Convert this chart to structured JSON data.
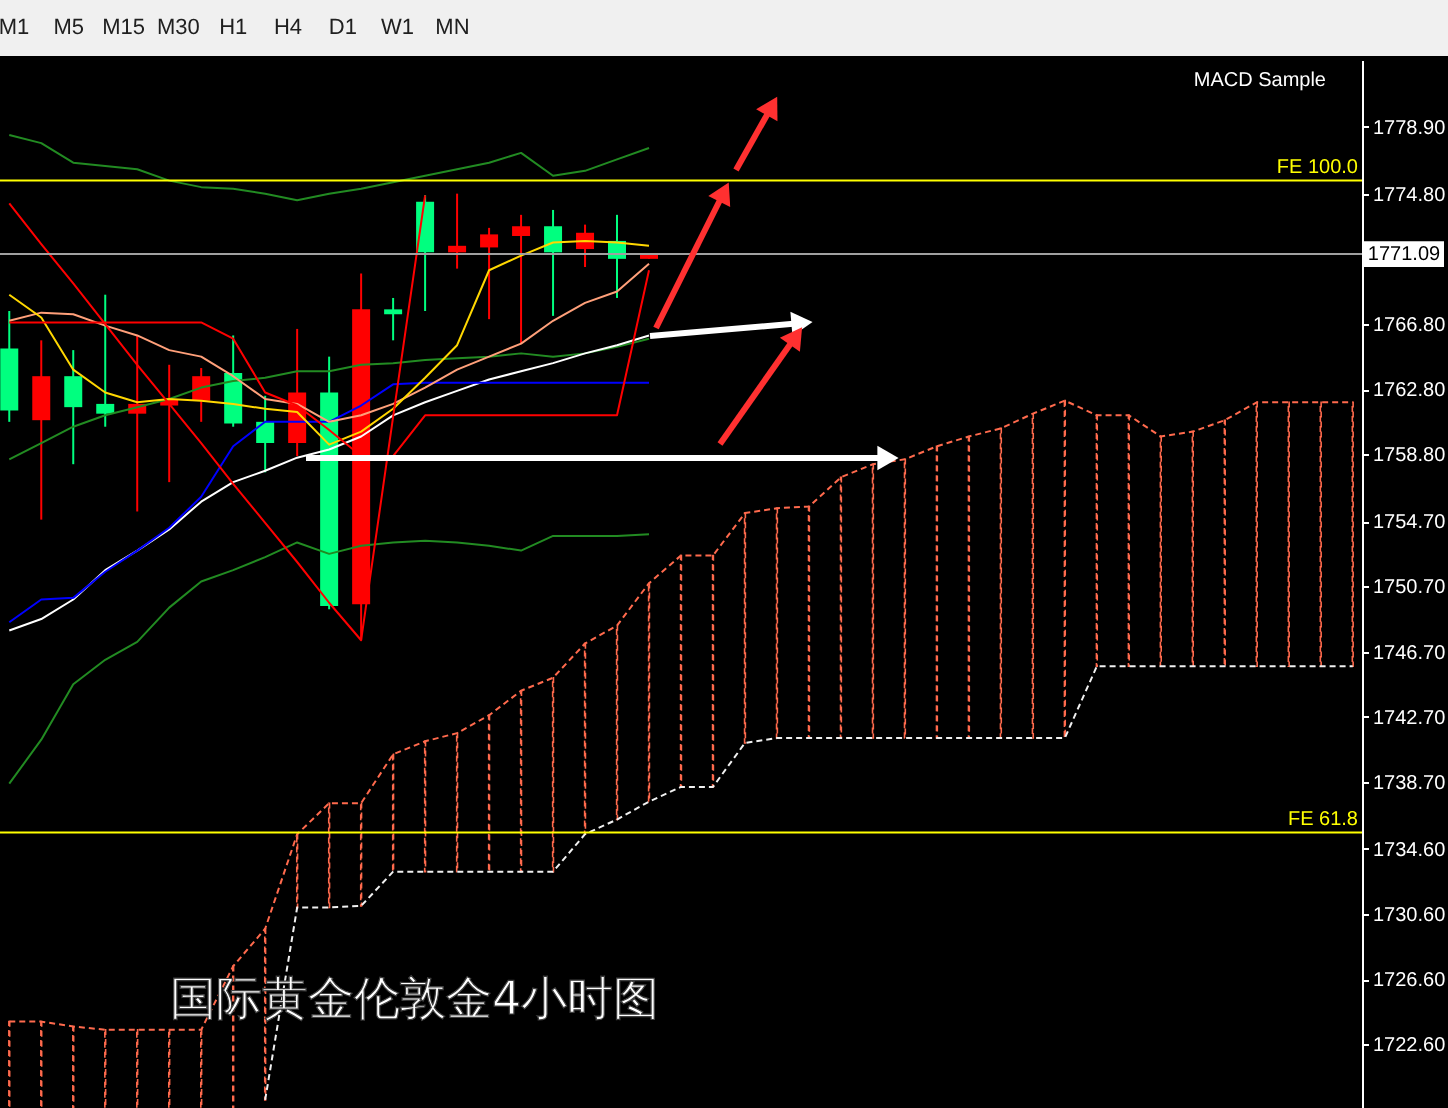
{
  "chart_data": {
    "type": "candlestick",
    "title": "国际黄金伦敦金4小时图",
    "categories": [
      null,
      null,
      null,
      null,
      null,
      null,
      null,
      null,
      null,
      null,
      null,
      null,
      null,
      null,
      null,
      null,
      null,
      null,
      null,
      null,
      null,
      null,
      null,
      null,
      null,
      null,
      null,
      null,
      null,
      null,
      null,
      null,
      null,
      null,
      null,
      null,
      null,
      null,
      null,
      null,
      null,
      null,
      null
    ],
    "ohlc": [
      [
        1761.5,
        1767.6,
        1760.8,
        1765.3
      ],
      [
        1763.6,
        1765.8,
        1754.8,
        1760.9
      ],
      [
        1761.7,
        1765.2,
        1758.2,
        1763.6
      ],
      [
        1761.3,
        1768.6,
        1760.5,
        1761.9
      ],
      [
        1761.9,
        1766.1,
        1755.3,
        1761.3
      ],
      [
        1762.2,
        1764.3,
        1757.1,
        1761.8
      ],
      [
        1763.6,
        1764.1,
        1760.8,
        1762.1
      ],
      [
        1760.7,
        1766.1,
        1760.5,
        1763.8
      ],
      [
        1759.5,
        1762.4,
        1757.7,
        1760.8
      ],
      [
        1762.6,
        1766.5,
        1758.7,
        1759.5
      ],
      [
        1749.5,
        1764.8,
        1749.3,
        1762.6
      ],
      [
        1767.7,
        1769.9,
        1747.4,
        1749.6
      ],
      [
        1767.4,
        1768.4,
        1765.8,
        1767.7
      ],
      [
        1771.2,
        1774.7,
        1767.6,
        1774.3
      ],
      [
        1771.6,
        1774.8,
        1770.2,
        1771.2
      ],
      [
        1772.3,
        1772.7,
        1767.1,
        1771.5
      ],
      [
        1772.8,
        1773.5,
        1765.6,
        1772.2
      ],
      [
        1771.2,
        1773.8,
        1767.3,
        1772.8
      ],
      [
        1772.4,
        1772.9,
        1770.3,
        1771.4
      ],
      [
        1770.8,
        1773.5,
        1768.4,
        1771.9
      ],
      [
        1771.1,
        1771.1,
        1770.8,
        1770.8
      ],
      null,
      null,
      null,
      null,
      null,
      null,
      null,
      null,
      null,
      null,
      null,
      null,
      null,
      null,
      null,
      null,
      null,
      null,
      null,
      null,
      null,
      null
    ],
    "colors": [
      "#00ff7f",
      "#ff0000",
      "#00ff7f",
      "#00ff7f",
      "#ff0000",
      "#ff0000",
      "#ff0000",
      "#00ff7f",
      "#00ff7f",
      "#ff0000",
      "#00ff7f",
      "#ff0000",
      "#00ff7f",
      "#00ff7f",
      "#ff0000",
      "#ff0000",
      "#ff0000",
      "#00ff7f",
      "#ff0000",
      "#00ff7f",
      "#ff0000",
      null,
      null,
      null,
      null,
      null,
      null,
      null,
      null,
      null,
      null,
      null,
      null,
      null,
      null,
      null,
      null,
      null,
      null,
      null,
      null,
      null,
      null
    ],
    "series": [
      {
        "type": "bar",
        "color": "#ff6a4d",
        "line_style": "dashed",
        "base": [
          1718.7,
          1718.7,
          1718.7,
          1718.7,
          1718.7,
          1718.7,
          1718.7,
          1718.7,
          1719.2,
          1731.0,
          1731.0,
          1731.1,
          1733.2,
          1733.2,
          1733.2,
          1733.2,
          1733.2,
          1733.2,
          1735.5,
          1736.4,
          1737.5,
          1738.4,
          1738.4,
          1741.1,
          1741.4,
          1741.4,
          1741.4,
          1741.4,
          1741.4,
          1741.4,
          1741.4,
          1741.4,
          1741.4,
          1741.4,
          1745.8,
          1745.8,
          1745.8,
          1745.8,
          1745.8,
          1745.8,
          1745.8,
          1745.8,
          1745.8
        ],
        "values": [
          5.3,
          5.3,
          5.0,
          4.8,
          4.8,
          4.8,
          4.8,
          8.7,
          10.5,
          4.5,
          6.4,
          6.3,
          7.2,
          8.0,
          8.5,
          9.6,
          11.1,
          11.9,
          11.7,
          11.9,
          13.4,
          14.2,
          14.2,
          14.1,
          14.1,
          14.2,
          16.0,
          16.8,
          17.1,
          17.9,
          18.5,
          19.0,
          19.9,
          20.7,
          15.4,
          15.4,
          14.1,
          14.4,
          15.1,
          16.2,
          16.2,
          16.2,
          16.2
        ]
      },
      {
        "type": "line",
        "color": "#ff6a4d",
        "line_style": "dashed",
        "values": [
          1724.0,
          1724.0,
          1723.7,
          1723.5,
          1723.5,
          1723.5,
          1723.5,
          1727.4,
          1729.7,
          1735.5,
          1737.4,
          1737.4,
          1740.4,
          1741.2,
          1741.7,
          1742.8,
          1744.3,
          1745.1,
          1747.2,
          1748.3,
          1750.9,
          1752.6,
          1752.6,
          1755.2,
          1755.5,
          1755.6,
          1757.4,
          1758.2,
          1758.5,
          1759.3,
          1759.9,
          1760.4,
          1761.3,
          1762.1,
          1761.2,
          1761.2,
          1759.9,
          1760.2,
          1760.9,
          1762.0,
          1762.0,
          1762.0,
          1762.0
        ]
      },
      {
        "type": "line",
        "color": "#f0f0f0",
        "line_style": "dashed",
        "values": [
          null,
          null,
          null,
          null,
          null,
          null,
          null,
          null,
          1719.2,
          1731.0,
          1731.0,
          1731.1,
          1733.2,
          1733.2,
          1733.2,
          1733.2,
          1733.2,
          1733.2,
          1735.5,
          1736.4,
          1737.5,
          1738.4,
          1738.4,
          1741.1,
          1741.4,
          1741.4,
          1741.4,
          1741.4,
          1741.4,
          1741.4,
          1741.4,
          1741.4,
          1741.4,
          1741.4,
          1745.8,
          1745.8,
          1745.8,
          1745.8,
          1745.8,
          1745.8,
          1745.8,
          1745.8,
          1745.8
        ]
      },
      {
        "type": "line",
        "color": "#228b22",
        "values": [
          1778.4,
          1777.9,
          1776.7,
          1776.5,
          1776.3,
          1775.6,
          1775.2,
          1775.1,
          1774.8,
          1774.4,
          1774.8,
          1775.1,
          1775.5,
          1775.9,
          1776.3,
          1776.7,
          1777.3,
          1775.9,
          1776.2,
          1776.9,
          1777.6,
          null,
          null,
          null,
          null,
          null,
          null,
          null,
          null,
          null,
          null,
          null,
          null,
          null,
          null,
          null,
          null,
          null,
          null,
          null,
          null,
          null,
          null
        ]
      },
      {
        "type": "line",
        "color": "#228b22",
        "values": [
          1758.5,
          1759.5,
          1760.5,
          1761.2,
          1761.7,
          1762.2,
          1762.9,
          1763.3,
          1763.5,
          1763.9,
          1763.9,
          1764.3,
          1764.4,
          1764.6,
          1764.7,
          1764.8,
          1765.0,
          1764.8,
          1765.0,
          1765.4,
          1765.9,
          null,
          null,
          null,
          null,
          null,
          null,
          null,
          null,
          null,
          null,
          null,
          null,
          null,
          null,
          null,
          null,
          null,
          null,
          null,
          null,
          null,
          null
        ]
      },
      {
        "type": "line",
        "color": "#228b22",
        "values": [
          1738.6,
          1741.3,
          1744.7,
          1746.2,
          1747.3,
          1749.4,
          1751.0,
          1751.7,
          1752.5,
          1753.4,
          1752.7,
          1753.2,
          1753.4,
          1753.5,
          1753.4,
          1753.2,
          1752.9,
          1753.8,
          1753.8,
          1753.8,
          1753.9,
          null,
          null,
          null,
          null,
          null,
          null,
          null,
          null,
          null,
          null,
          null,
          null,
          null,
          null,
          null,
          null,
          null,
          null,
          null,
          null,
          null,
          null
        ]
      },
      {
        "type": "line",
        "color": "#ffffff",
        "values": [
          1748.0,
          1748.7,
          1749.9,
          1751.7,
          1752.9,
          1754.2,
          1755.9,
          1757.1,
          1757.8,
          1758.6,
          1759.1,
          1759.9,
          1761.2,
          1762.0,
          1762.7,
          1763.4,
          1763.9,
          1764.4,
          1765.0,
          1765.5,
          1766.1,
          null,
          null,
          null,
          null,
          null,
          null,
          null,
          null,
          null,
          null,
          null,
          null,
          null,
          null,
          null,
          null,
          null,
          null,
          null,
          null,
          null,
          null
        ]
      },
      {
        "type": "line",
        "color": "#0000ff",
        "values": [
          1748.5,
          1749.9,
          1750.0,
          1751.6,
          1752.9,
          1754.3,
          1756.2,
          1759.3,
          1760.8,
          1760.8,
          1760.8,
          1761.8,
          1763.1,
          1763.2,
          1763.2,
          1763.2,
          1763.2,
          1763.2,
          1763.2,
          1763.2,
          1763.2,
          null,
          null,
          null,
          null,
          null,
          null,
          null,
          null,
          null,
          null,
          null,
          null,
          null,
          null,
          null,
          null,
          null,
          null,
          null,
          null,
          null,
          null
        ]
      },
      {
        "type": "line",
        "color": "#ffa07a",
        "values": [
          1767.0,
          1767.5,
          1767.4,
          1766.7,
          1766.1,
          1765.2,
          1764.8,
          1763.6,
          1762.2,
          1761.9,
          1760.8,
          1761.2,
          1761.9,
          1762.9,
          1764.0,
          1764.8,
          1765.6,
          1767.0,
          1768.1,
          1768.8,
          1770.5,
          null,
          null,
          null,
          null,
          null,
          null,
          null,
          null,
          null,
          null,
          null,
          null,
          null,
          null,
          null,
          null,
          null,
          null,
          null,
          null,
          null,
          null
        ]
      },
      {
        "type": "line",
        "color": "#ffd700",
        "values": [
          1768.6,
          1767.2,
          1764.0,
          1762.6,
          1762.0,
          1762.2,
          1762.1,
          1761.9,
          1761.6,
          1761.4,
          1759.4,
          1760.2,
          1761.6,
          1763.5,
          1765.5,
          1770.1,
          1771.0,
          1771.8,
          1771.9,
          1771.8,
          1771.6,
          null,
          null,
          null,
          null,
          null,
          null,
          null,
          null,
          null,
          null,
          null,
          null,
          null,
          null,
          null,
          null,
          null,
          null,
          null,
          null,
          null,
          null
        ]
      },
      {
        "type": "line",
        "color": "#ff0000",
        "values": [
          1766.9,
          1766.9,
          1766.9,
          1766.9,
          1766.9,
          1766.9,
          1766.9,
          1765.9,
          1762.6,
          1761.8,
          1760.3,
          1758.7,
          1758.7,
          1761.2,
          1761.2,
          1761.2,
          1761.2,
          1761.2,
          1761.2,
          1761.2,
          1770.1,
          null,
          null,
          null,
          null,
          null,
          null,
          null,
          null,
          null,
          null,
          null,
          null,
          null,
          null,
          null,
          null,
          null,
          null,
          null,
          null,
          null,
          null
        ]
      },
      {
        "type": "line",
        "color": "#ff0000",
        "values": [
          1774.2,
          1771.7,
          1769.3,
          1766.8,
          1764.3,
          1761.9,
          1759.5,
          1757.0,
          1754.6,
          1752.2,
          1749.7,
          1747.4,
          1761.1,
          1774.7,
          null,
          null,
          null,
          null,
          null,
          null,
          null,
          null,
          null,
          null,
          null,
          null,
          null,
          null,
          null,
          null,
          null,
          null,
          null,
          null,
          null,
          null,
          null,
          null,
          null,
          null,
          null,
          null,
          null
        ]
      }
    ],
    "ylim": [
      1718.7,
      1783.0
    ],
    "yticks": [
      {
        "value": 1778.9,
        "label": "1778.90"
      },
      {
        "value": 1774.8,
        "label": "1774.80"
      },
      {
        "value": 1766.8,
        "label": "1766.80"
      },
      {
        "value": 1762.8,
        "label": "1762.80"
      },
      {
        "value": 1758.8,
        "label": "1758.80"
      },
      {
        "value": 1754.7,
        "label": "1754.70"
      },
      {
        "value": 1750.7,
        "label": "1750.70"
      },
      {
        "value": 1746.7,
        "label": "1746.70"
      },
      {
        "value": 1742.7,
        "label": "1742.70"
      },
      {
        "value": 1738.7,
        "label": "1738.70"
      },
      {
        "value": 1734.6,
        "label": "1734.60"
      },
      {
        "value": 1730.6,
        "label": "1730.60"
      },
      {
        "value": 1726.6,
        "label": "1726.60"
      },
      {
        "value": 1722.6,
        "label": "1722.60"
      }
    ],
    "ref_lines": [
      {
        "axis": "y",
        "value": 1775.6,
        "label": "FE 100.0",
        "color": "#ffff00"
      },
      {
        "axis": "y",
        "value": 1735.6,
        "label": "FE 61.8",
        "color": "#ffff00"
      },
      {
        "axis": "y",
        "value": 1771.09,
        "label": "1771.09",
        "color": "#a0a0a0"
      }
    ],
    "annotations": [
      "MACD Sample",
      "M1",
      "M5",
      "M15",
      "M30",
      "H1",
      "H4",
      "D1",
      "W1",
      "MN"
    ],
    "tick_labels": "y"
  }
}
